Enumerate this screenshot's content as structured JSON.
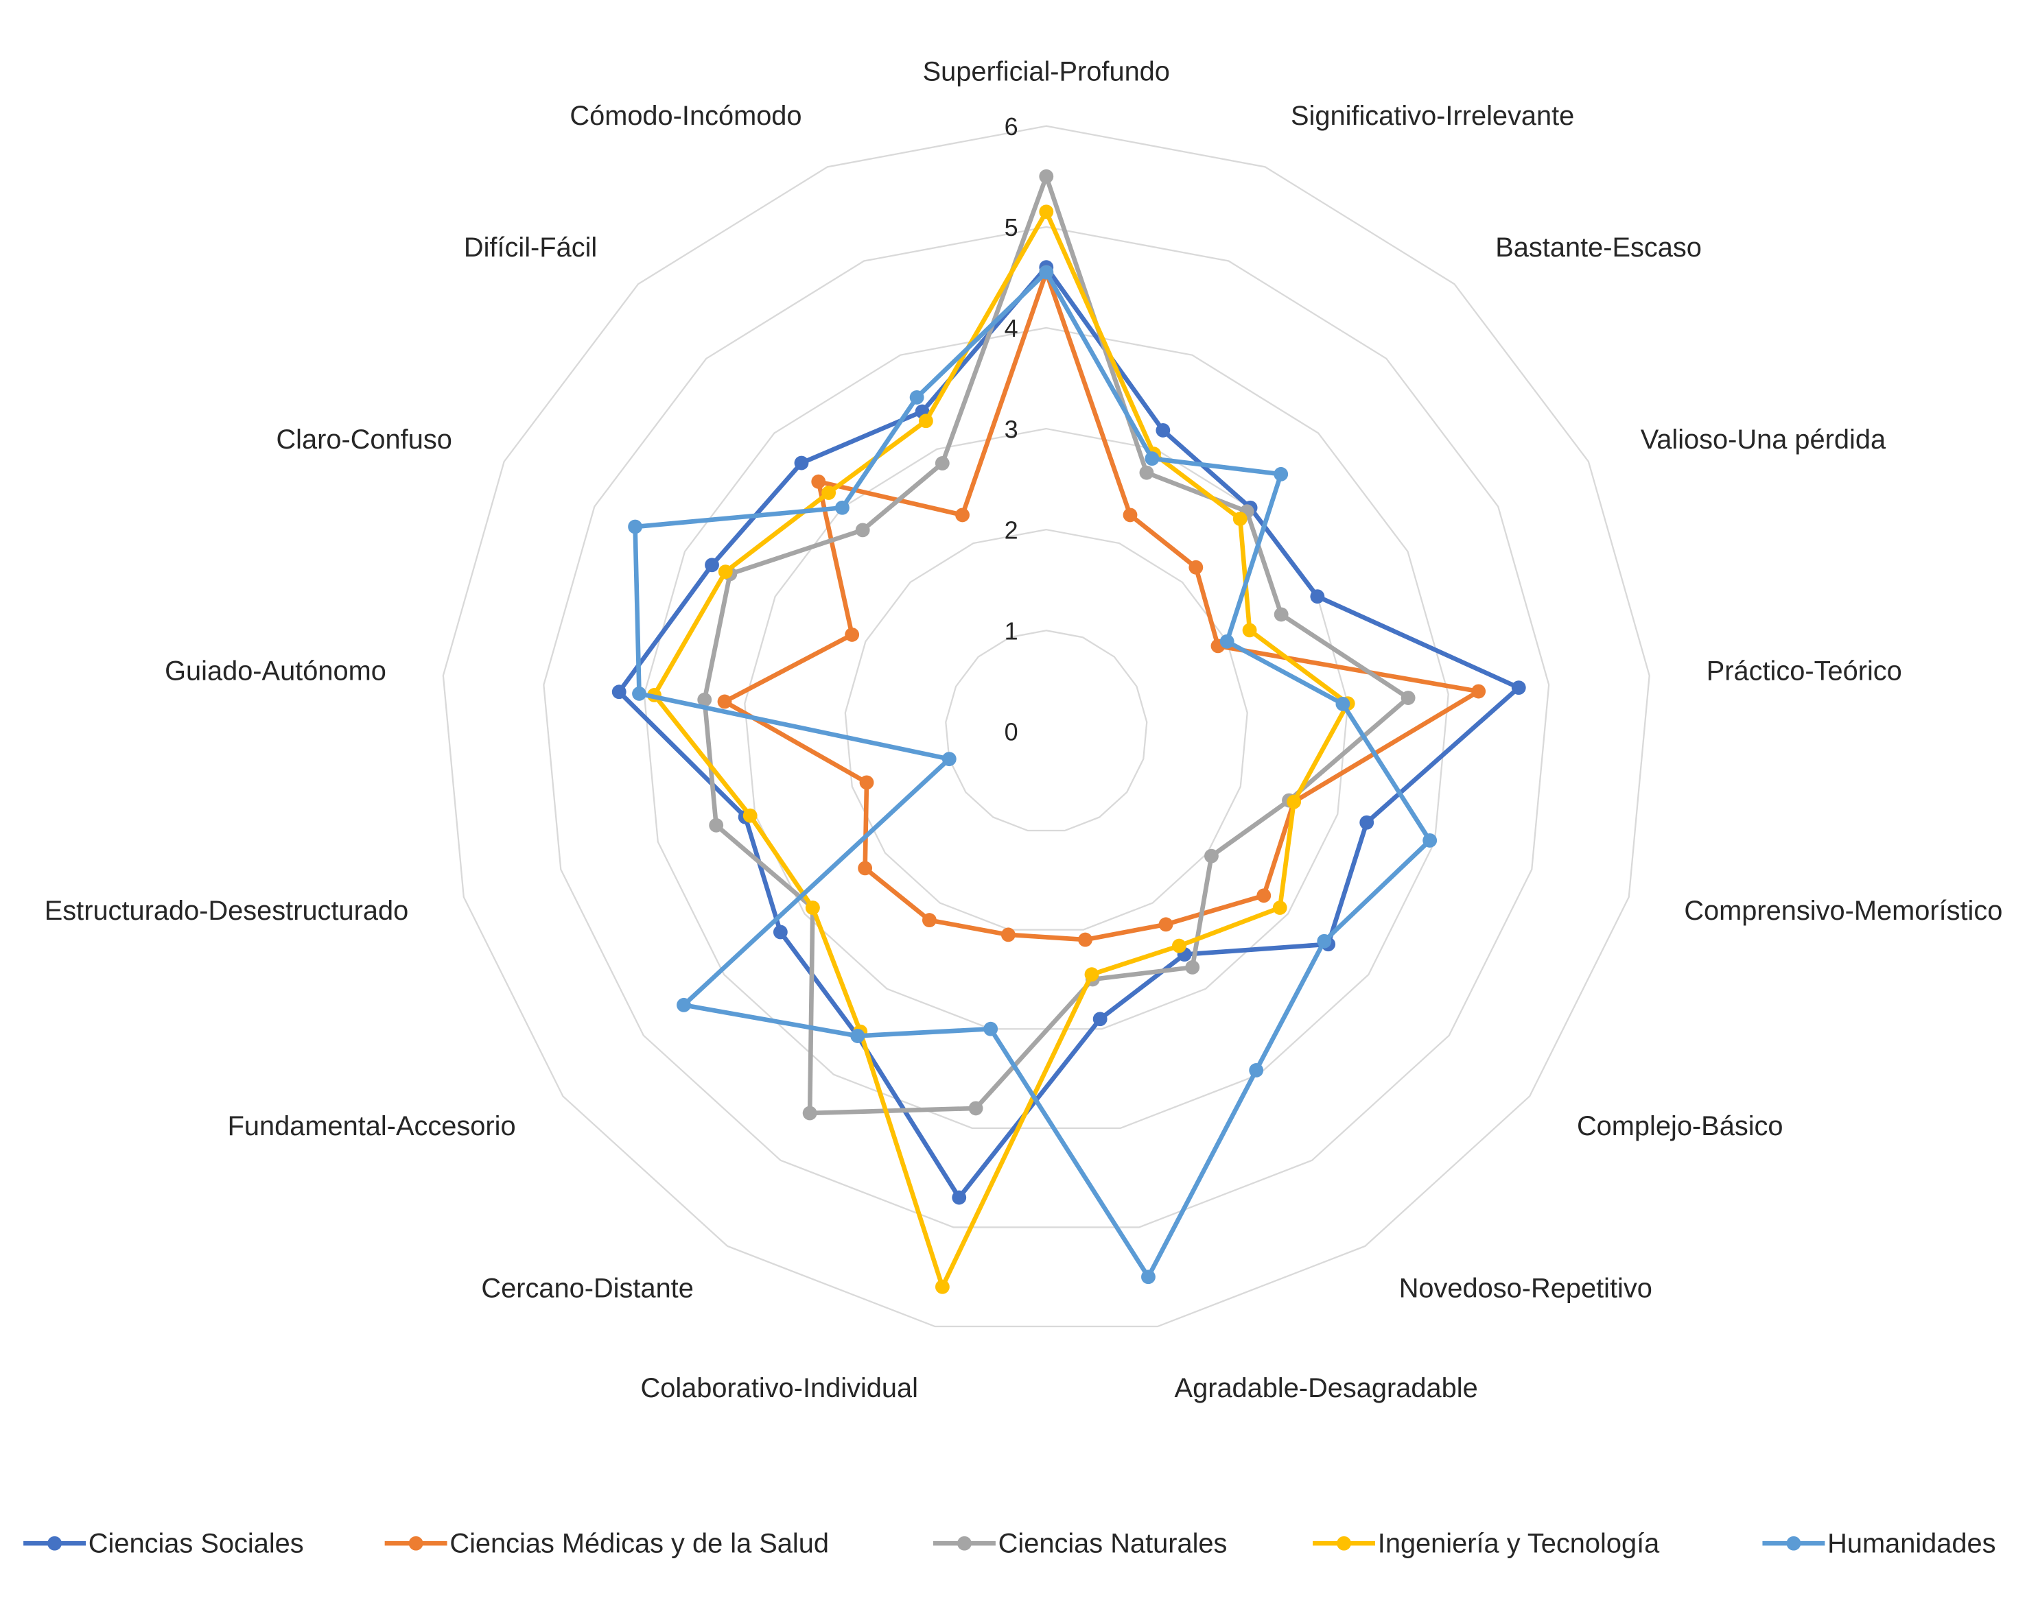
{
  "chart_data": {
    "type": "radar",
    "title": "",
    "rlim": [
      0,
      6
    ],
    "r_ticks": [
      "0",
      "1",
      "2",
      "3",
      "4",
      "5",
      "6"
    ],
    "grid": true,
    "legend_position": "bottom",
    "categories": [
      "Superficial-Profundo",
      "Significativo-Irrelevante",
      "Bastante-Escaso",
      "Valioso-Una pérdida",
      "Práctico-Teórico",
      "Comprensivo-Memorístico",
      "Complejo-Básico",
      "Novedoso-Repetitivo",
      "Agradable-Desagradable",
      "Colaborativo-Individual",
      "Cercano-Distante",
      "Fundamental-Accesorio",
      "Estructurado-Desestructurado",
      "Guiado-Autónomo",
      "Claro-Confuso",
      "Difícil-Fácil",
      "Cómodo-Incómodo"
    ],
    "series": [
      {
        "name": "Ciencias Sociales",
        "color": "#4472c4",
        "values": [
          4.6,
          3.2,
          3.0,
          3.0,
          4.7,
          3.3,
          3.5,
          2.6,
          2.9,
          4.7,
          3.55,
          3.3,
          3.1,
          4.25,
          3.7,
          3.6,
          3.4
        ]
      },
      {
        "name": "Ciencias Médicas y de la Salud",
        "color": "#ed7d31",
        "values": [
          4.55,
          2.3,
          2.2,
          1.9,
          4.3,
          2.55,
          2.7,
          2.25,
          2.1,
          2.05,
          2.2,
          2.25,
          1.85,
          3.2,
          2.15,
          3.35,
          2.3
        ]
      },
      {
        "name": "Ciencias Naturales",
        "color": "#a5a5a5",
        "values": [
          5.5,
          2.75,
          2.95,
          2.6,
          3.6,
          2.5,
          2.05,
          2.75,
          2.5,
          3.8,
          4.45,
          2.9,
          3.4,
          3.4,
          3.5,
          2.7,
          2.85
        ]
      },
      {
        "name": "Ingeniería y Tecnología",
        "color": "#ffc000",
        "values": [
          5.15,
          2.95,
          2.85,
          2.25,
          3.0,
          2.55,
          2.9,
          2.5,
          2.45,
          5.6,
          3.5,
          2.9,
          3.05,
          3.9,
          3.55,
          3.2,
          3.3
        ]
      },
      {
        "name": "Humanidades",
        "color": "#5b9bd5",
        "values": [
          4.55,
          2.9,
          3.45,
          2.0,
          2.95,
          3.95,
          3.45,
          3.95,
          5.5,
          3.0,
          3.55,
          4.5,
          1.0,
          4.05,
          4.55,
          3.0,
          3.55
        ]
      }
    ]
  }
}
